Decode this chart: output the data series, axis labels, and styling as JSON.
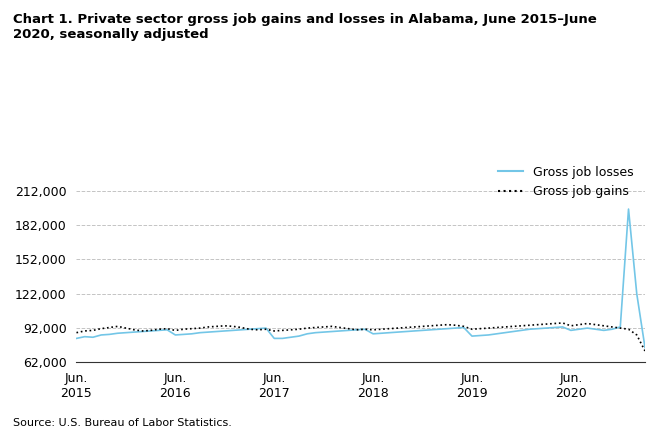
{
  "title": "Chart 1. Private sector gross job gains and losses in Alabama, June 2015–June\n2020, seasonally adjusted",
  "source": "Source: U.S. Bureau of Labor Statistics.",
  "ylabel": "",
  "xlabel": "",
  "ylim": [
    62000,
    220000
  ],
  "yticks": [
    62000,
    92000,
    122000,
    152000,
    182000,
    212000
  ],
  "background_color": "#ffffff",
  "grid_color": "#aaaaaa",
  "losses_color": "#73c6e7",
  "gains_color": "#000000",
  "legend_labels": [
    "Gross job losses",
    "Gross job gains"
  ],
  "x_tick_labels": [
    "Jun.\n2015",
    "Jun.\n2016",
    "Jun.\n2017",
    "Jun.\n2018",
    "Jun.\n2019",
    "Jun.\n2020"
  ],
  "losses": [
    83000,
    84500,
    84000,
    86000,
    86500,
    87500,
    88000,
    88500,
    89000,
    89500,
    90000,
    90500,
    86000,
    86500,
    87000,
    88000,
    88500,
    89000,
    89500,
    90000,
    90500,
    91000,
    91500,
    92000,
    83000,
    83000,
    84000,
    85000,
    87000,
    88000,
    88500,
    89000,
    89500,
    90000,
    90500,
    91000,
    87000,
    87500,
    88000,
    88500,
    89000,
    89500,
    90000,
    90500,
    91000,
    91500,
    92000,
    92500,
    85000,
    85500,
    86000,
    87000,
    88000,
    89000,
    90000,
    91000,
    91500,
    92000,
    92500,
    93000,
    90000,
    91000,
    92000,
    91000,
    90000,
    91000,
    93000,
    196000,
    122000,
    75000
  ],
  "gains": [
    88000,
    89500,
    90000,
    91500,
    92500,
    93500,
    92000,
    90500,
    89500,
    90000,
    91000,
    91500,
    90000,
    91000,
    91500,
    92000,
    93000,
    93500,
    94000,
    93500,
    92500,
    91000,
    90500,
    91000,
    89500,
    90000,
    90500,
    91000,
    92000,
    92500,
    93000,
    93500,
    92500,
    91500,
    90500,
    91000,
    90500,
    91000,
    91500,
    92000,
    92500,
    93000,
    93500,
    94000,
    94500,
    95000,
    94500,
    93500,
    91000,
    91500,
    92000,
    92500,
    93000,
    93500,
    94000,
    94500,
    95000,
    95500,
    96000,
    96500,
    94000,
    95000,
    96000,
    95000,
    94000,
    93000,
    92000,
    91000,
    86000,
    72000
  ]
}
